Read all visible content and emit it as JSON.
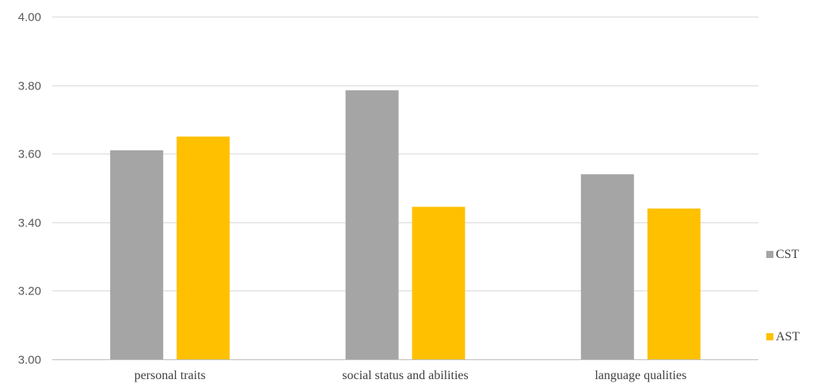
{
  "chart_data": {
    "type": "bar",
    "title": "",
    "xlabel": "",
    "ylabel": "",
    "categories": [
      "personal traits",
      "social status and abilities",
      "language qualities"
    ],
    "series": [
      {
        "name": "CST",
        "values": [
          3.61,
          3.785,
          3.54
        ],
        "color": "#a5a5a5"
      },
      {
        "name": "AST",
        "values": [
          3.65,
          3.445,
          3.44
        ],
        "color": "#ffc000"
      }
    ],
    "ylim": [
      3.0,
      4.0
    ],
    "yticks": [
      "3.00",
      "3.20",
      "3.40",
      "3.60",
      "3.80",
      "4.00"
    ],
    "ytick_values": [
      3.0,
      3.2,
      3.4,
      3.6,
      3.8,
      4.0
    ],
    "grid": true,
    "gridline_color": "#d9d9d9",
    "legend_position": "right"
  }
}
